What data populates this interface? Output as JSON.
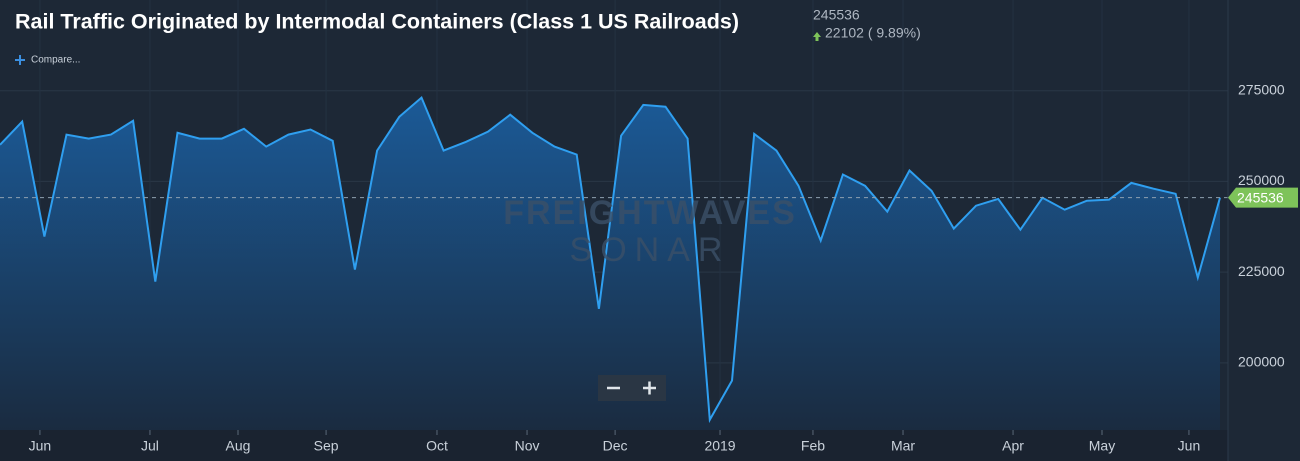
{
  "chart_data": {
    "type": "area",
    "title": "Rail Traffic Originated by Intermodal Containers (Class 1 US Railroads)",
    "change": "22102 ( 9.89%)",
    "compare": "Compare...",
    "watermark": [
      "FREIGHTWAVES",
      "SONAR"
    ],
    "color": "#2f9ff0",
    "values": [
      260100,
      266500,
      234800,
      262900,
      261800,
      262900,
      266700,
      222400,
      263400,
      261800,
      261800,
      264500,
      259600,
      262900,
      264300,
      261200,
      225700,
      258500,
      267800,
      273100,
      258500,
      260900,
      263700,
      268400,
      263400,
      259600,
      257400,
      214900,
      262600,
      271100,
      270600,
      261800,
      184300,
      195100,
      263100,
      258500,
      248800,
      233700,
      251900,
      248800,
      241700,
      253000,
      247400,
      237000,
      243300,
      245200,
      236700,
      245500,
      242200,
      244700,
      245000,
      249600,
      248000,
      246600,
      223500,
      245536
    ],
    "xlim": [
      0,
      55
    ],
    "xticks": [
      {
        "value": 1.8,
        "label": "Jun"
      },
      {
        "value": 6.76,
        "label": "Jul"
      },
      {
        "value": 10.73,
        "label": "Aug"
      },
      {
        "value": 14.7,
        "label": "Sep"
      },
      {
        "value": 19.7,
        "label": "Oct"
      },
      {
        "value": 23.76,
        "label": "Nov"
      },
      {
        "value": 27.73,
        "label": "Dec"
      },
      {
        "value": 32.46,
        "label": "2019"
      },
      {
        "value": 36.65,
        "label": "Feb"
      },
      {
        "value": 40.71,
        "label": "Mar"
      },
      {
        "value": 45.67,
        "label": "Apr"
      },
      {
        "value": 49.68,
        "label": "May"
      },
      {
        "value": 53.6,
        "label": "Jun"
      }
    ],
    "ylim": [
      181500,
      300000
    ],
    "yticks": [
      200000,
      225000,
      250000,
      275000
    ],
    "grid": true
  }
}
